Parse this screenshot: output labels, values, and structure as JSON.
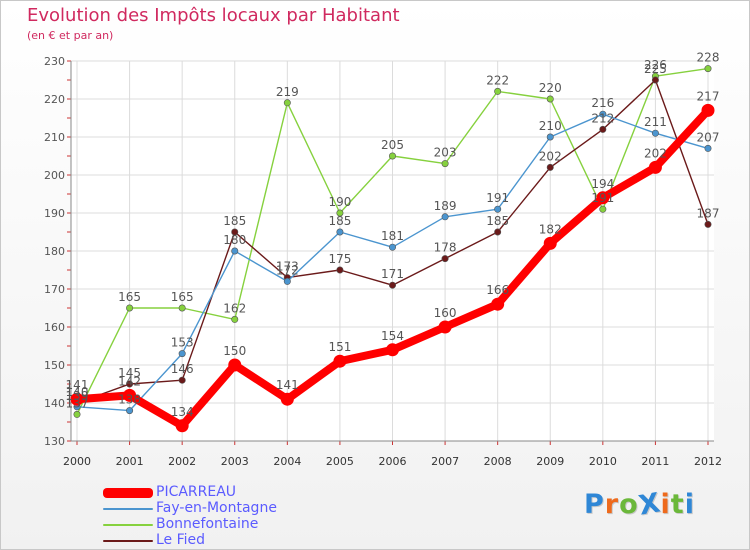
{
  "title": "Evolution des Impôts locaux par Habitant",
  "subtitle": "(en € et par an)",
  "brand": {
    "text": "ProXiti",
    "letter_colors": [
      "#2f87d6",
      "#ee6a1c",
      "#6bb83a",
      "#2f87d6",
      "#ee6a1c",
      "#6bb83a",
      "#2f87d6"
    ]
  },
  "chart_data": {
    "type": "line",
    "x": [
      "2000",
      "2001",
      "2002",
      "2003",
      "2004",
      "2005",
      "2006",
      "2007",
      "2008",
      "2009",
      "2010",
      "2011",
      "2012"
    ],
    "ylim": [
      130,
      230
    ],
    "yticks": [
      "130",
      "140",
      "150",
      "160",
      "170",
      "180",
      "190",
      "200",
      "210",
      "220",
      "230"
    ],
    "grid": true,
    "legend_position": "bottom-left",
    "series": [
      {
        "name": "Bonnefontaine",
        "color": "#86d13e",
        "values": [
          137,
          165,
          165,
          162,
          219,
          190,
          205,
          203,
          222,
          220,
          191,
          226,
          228
        ],
        "labels": [
          "137",
          "165",
          "165",
          "162",
          "219",
          "190",
          "205",
          "203",
          "222",
          "220",
          "191",
          "226",
          "228"
        ]
      },
      {
        "name": "Le Fied",
        "color": "#6b1a1a",
        "values": [
          140,
          145,
          146,
          185,
          173,
          175,
          171,
          178,
          185,
          202,
          212,
          225,
          187
        ],
        "labels": [
          "140",
          "145",
          "146",
          "185",
          "173",
          "175",
          "171",
          "178",
          "185",
          "202",
          "212",
          "225",
          "187"
        ]
      },
      {
        "name": "Fay-en-Montagne",
        "color": "#4b95cf",
        "values": [
          139,
          138,
          153,
          180,
          172,
          185,
          181,
          189,
          191,
          210,
          216,
          211,
          207
        ],
        "labels": [
          "139",
          "138",
          "153",
          "180",
          "172",
          "185",
          "181",
          "189",
          "191",
          "210",
          "216",
          "211",
          "207"
        ]
      },
      {
        "name": "PICARREAU",
        "color": "#ff0000",
        "values": [
          141,
          142,
          134,
          150,
          141,
          151,
          154,
          160,
          166,
          182,
          194,
          202,
          217
        ],
        "labels": [
          "141",
          "142",
          "134",
          "150",
          "141",
          "151",
          "154",
          "160",
          "166",
          "182",
          "194",
          "202",
          "217"
        ]
      }
    ],
    "legend_order": [
      "PICARREAU",
      "Fay-en-Montagne",
      "Bonnefontaine",
      "Le Fied"
    ]
  }
}
